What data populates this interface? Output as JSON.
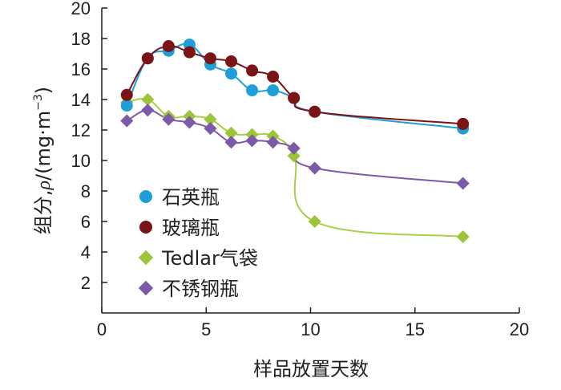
{
  "chart_data": {
    "type": "line",
    "xlabel": "样品放置天数",
    "ylabel_parts": {
      "main": "组分,",
      "rho": "ρ",
      "unit": "/(mg·m",
      "exp": "−3",
      "close": ")"
    },
    "xlim": [
      0,
      20
    ],
    "ylim": [
      0,
      20
    ],
    "xticks": [
      "0",
      "5",
      "10",
      "15",
      "20"
    ],
    "yticks": [
      "2",
      "4",
      "6",
      "8",
      "10",
      "12",
      "14",
      "16",
      "18",
      "20"
    ],
    "legend_position": "left-middle",
    "series": [
      {
        "name": "石英瓶",
        "marker": "circle",
        "color": "#1e9fd8",
        "line_color": "#1e9fd8",
        "x": [
          1.2,
          2.2,
          3.2,
          4.2,
          5.2,
          6.2,
          7.2,
          8.2,
          9.2,
          10.2,
          17.3
        ],
        "y": [
          13.6,
          16.7,
          17.2,
          17.6,
          16.3,
          15.7,
          14.6,
          14.6,
          14.1,
          13.2,
          12.1
        ]
      },
      {
        "name": "玻璃瓶",
        "marker": "circle",
        "color": "#7b1416",
        "line_color": "#7b1416",
        "x": [
          1.2,
          2.2,
          3.2,
          4.2,
          5.2,
          6.2,
          7.2,
          8.2,
          9.2,
          10.2,
          17.3
        ],
        "y": [
          14.3,
          16.7,
          17.5,
          17.1,
          16.7,
          16.5,
          15.9,
          15.5,
          14.1,
          13.2,
          12.4
        ]
      },
      {
        "name": "Tedlar气袋",
        "marker": "diamond",
        "color": "#9cc53a",
        "line_color": "#a8cf45",
        "x": [
          1.2,
          2.2,
          3.2,
          4.2,
          5.2,
          6.2,
          7.2,
          8.2,
          9.2,
          10.2,
          17.3
        ],
        "y": [
          13.8,
          14.0,
          12.9,
          12.9,
          12.7,
          11.8,
          11.7,
          11.6,
          10.3,
          6.0,
          5.0
        ]
      },
      {
        "name": "不锈钢瓶",
        "marker": "diamond",
        "color": "#7b5ba7",
        "line_color": "#7b5ba7",
        "x": [
          1.2,
          2.2,
          3.2,
          4.2,
          5.2,
          6.2,
          7.2,
          8.2,
          9.2,
          10.2,
          17.3
        ],
        "y": [
          12.6,
          13.3,
          12.7,
          12.5,
          12.1,
          11.2,
          11.3,
          11.2,
          10.8,
          9.5,
          8.5
        ]
      }
    ]
  }
}
